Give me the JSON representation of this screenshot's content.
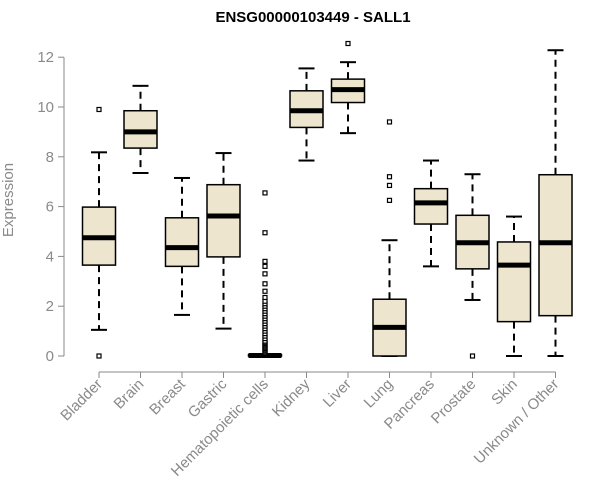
{
  "chart_data": {
    "type": "boxplot",
    "title": "ENSG00000103449 - SALL1",
    "xlabel": "",
    "ylabel": "Expression",
    "ylim": [
      0,
      12.5
    ],
    "yticks": [
      0,
      2,
      4,
      6,
      8,
      10,
      12
    ],
    "colors": {
      "box_fill": "#ede5cd",
      "box_stroke": "#000000",
      "axis": "#8a8a8a",
      "text": "#8a8a8a"
    },
    "categories": [
      "Bladder",
      "Brain",
      "Breast",
      "Gastric",
      "Hematopoietic cells",
      "Kidney",
      "Liver",
      "Lung",
      "Pancreas",
      "Prostate",
      "Skin",
      "Unknown / Other"
    ],
    "boxes": [
      {
        "name": "Bladder",
        "lower_whisker": 1.05,
        "q1": 3.65,
        "median": 4.75,
        "q3": 5.98,
        "upper_whisker": 8.18,
        "outliers": [
          0.0,
          9.9
        ]
      },
      {
        "name": "Brain",
        "lower_whisker": 7.35,
        "q1": 8.35,
        "median": 9.0,
        "q3": 9.85,
        "upper_whisker": 10.85,
        "outliers": []
      },
      {
        "name": "Breast",
        "lower_whisker": 1.65,
        "q1": 3.6,
        "median": 4.35,
        "q3": 5.55,
        "upper_whisker": 7.15,
        "outliers": []
      },
      {
        "name": "Gastric",
        "lower_whisker": 1.1,
        "q1": 3.98,
        "median": 5.62,
        "q3": 6.88,
        "upper_whisker": 8.15,
        "outliers": []
      },
      {
        "name": "Hematopoietic cells",
        "lower_whisker": 0.0,
        "q1": 0.0,
        "median": 0.02,
        "q3": 0.05,
        "upper_whisker": 0.08,
        "outliers": [
          0.1,
          0.15,
          0.2,
          0.25,
          0.3,
          0.35,
          0.4,
          0.45,
          0.5,
          0.55,
          0.6,
          0.7,
          0.8,
          0.9,
          1.0,
          1.1,
          1.2,
          1.3,
          1.4,
          1.5,
          1.6,
          1.7,
          1.8,
          1.9,
          2.0,
          2.1,
          2.2,
          2.35,
          2.6,
          2.9,
          3.3,
          3.6,
          3.8,
          4.95,
          6.55
        ]
      },
      {
        "name": "Kidney",
        "lower_whisker": 7.85,
        "q1": 9.18,
        "median": 9.85,
        "q3": 10.65,
        "upper_whisker": 11.55,
        "outliers": []
      },
      {
        "name": "Liver",
        "lower_whisker": 8.95,
        "q1": 10.18,
        "median": 10.7,
        "q3": 11.12,
        "upper_whisker": 11.8,
        "outliers": [
          12.55
        ]
      },
      {
        "name": "Lung",
        "lower_whisker": 0.0,
        "q1": 0.0,
        "median": 1.15,
        "q3": 2.28,
        "upper_whisker": 4.65,
        "outliers": [
          6.25,
          6.85,
          7.2,
          9.4
        ]
      },
      {
        "name": "Pancreas",
        "lower_whisker": 3.6,
        "q1": 5.3,
        "median": 6.15,
        "q3": 6.72,
        "upper_whisker": 7.85,
        "outliers": []
      },
      {
        "name": "Prostate",
        "lower_whisker": 2.25,
        "q1": 3.5,
        "median": 4.55,
        "q3": 5.65,
        "upper_whisker": 7.3,
        "outliers": [
          0.0
        ]
      },
      {
        "name": "Skin",
        "lower_whisker": 0.0,
        "q1": 1.38,
        "median": 3.65,
        "q3": 4.58,
        "upper_whisker": 5.6,
        "outliers": []
      },
      {
        "name": "Unknown / Other",
        "lower_whisker": 0.0,
        "q1": 1.62,
        "median": 4.55,
        "q3": 7.28,
        "upper_whisker": 12.28,
        "outliers": []
      }
    ]
  }
}
